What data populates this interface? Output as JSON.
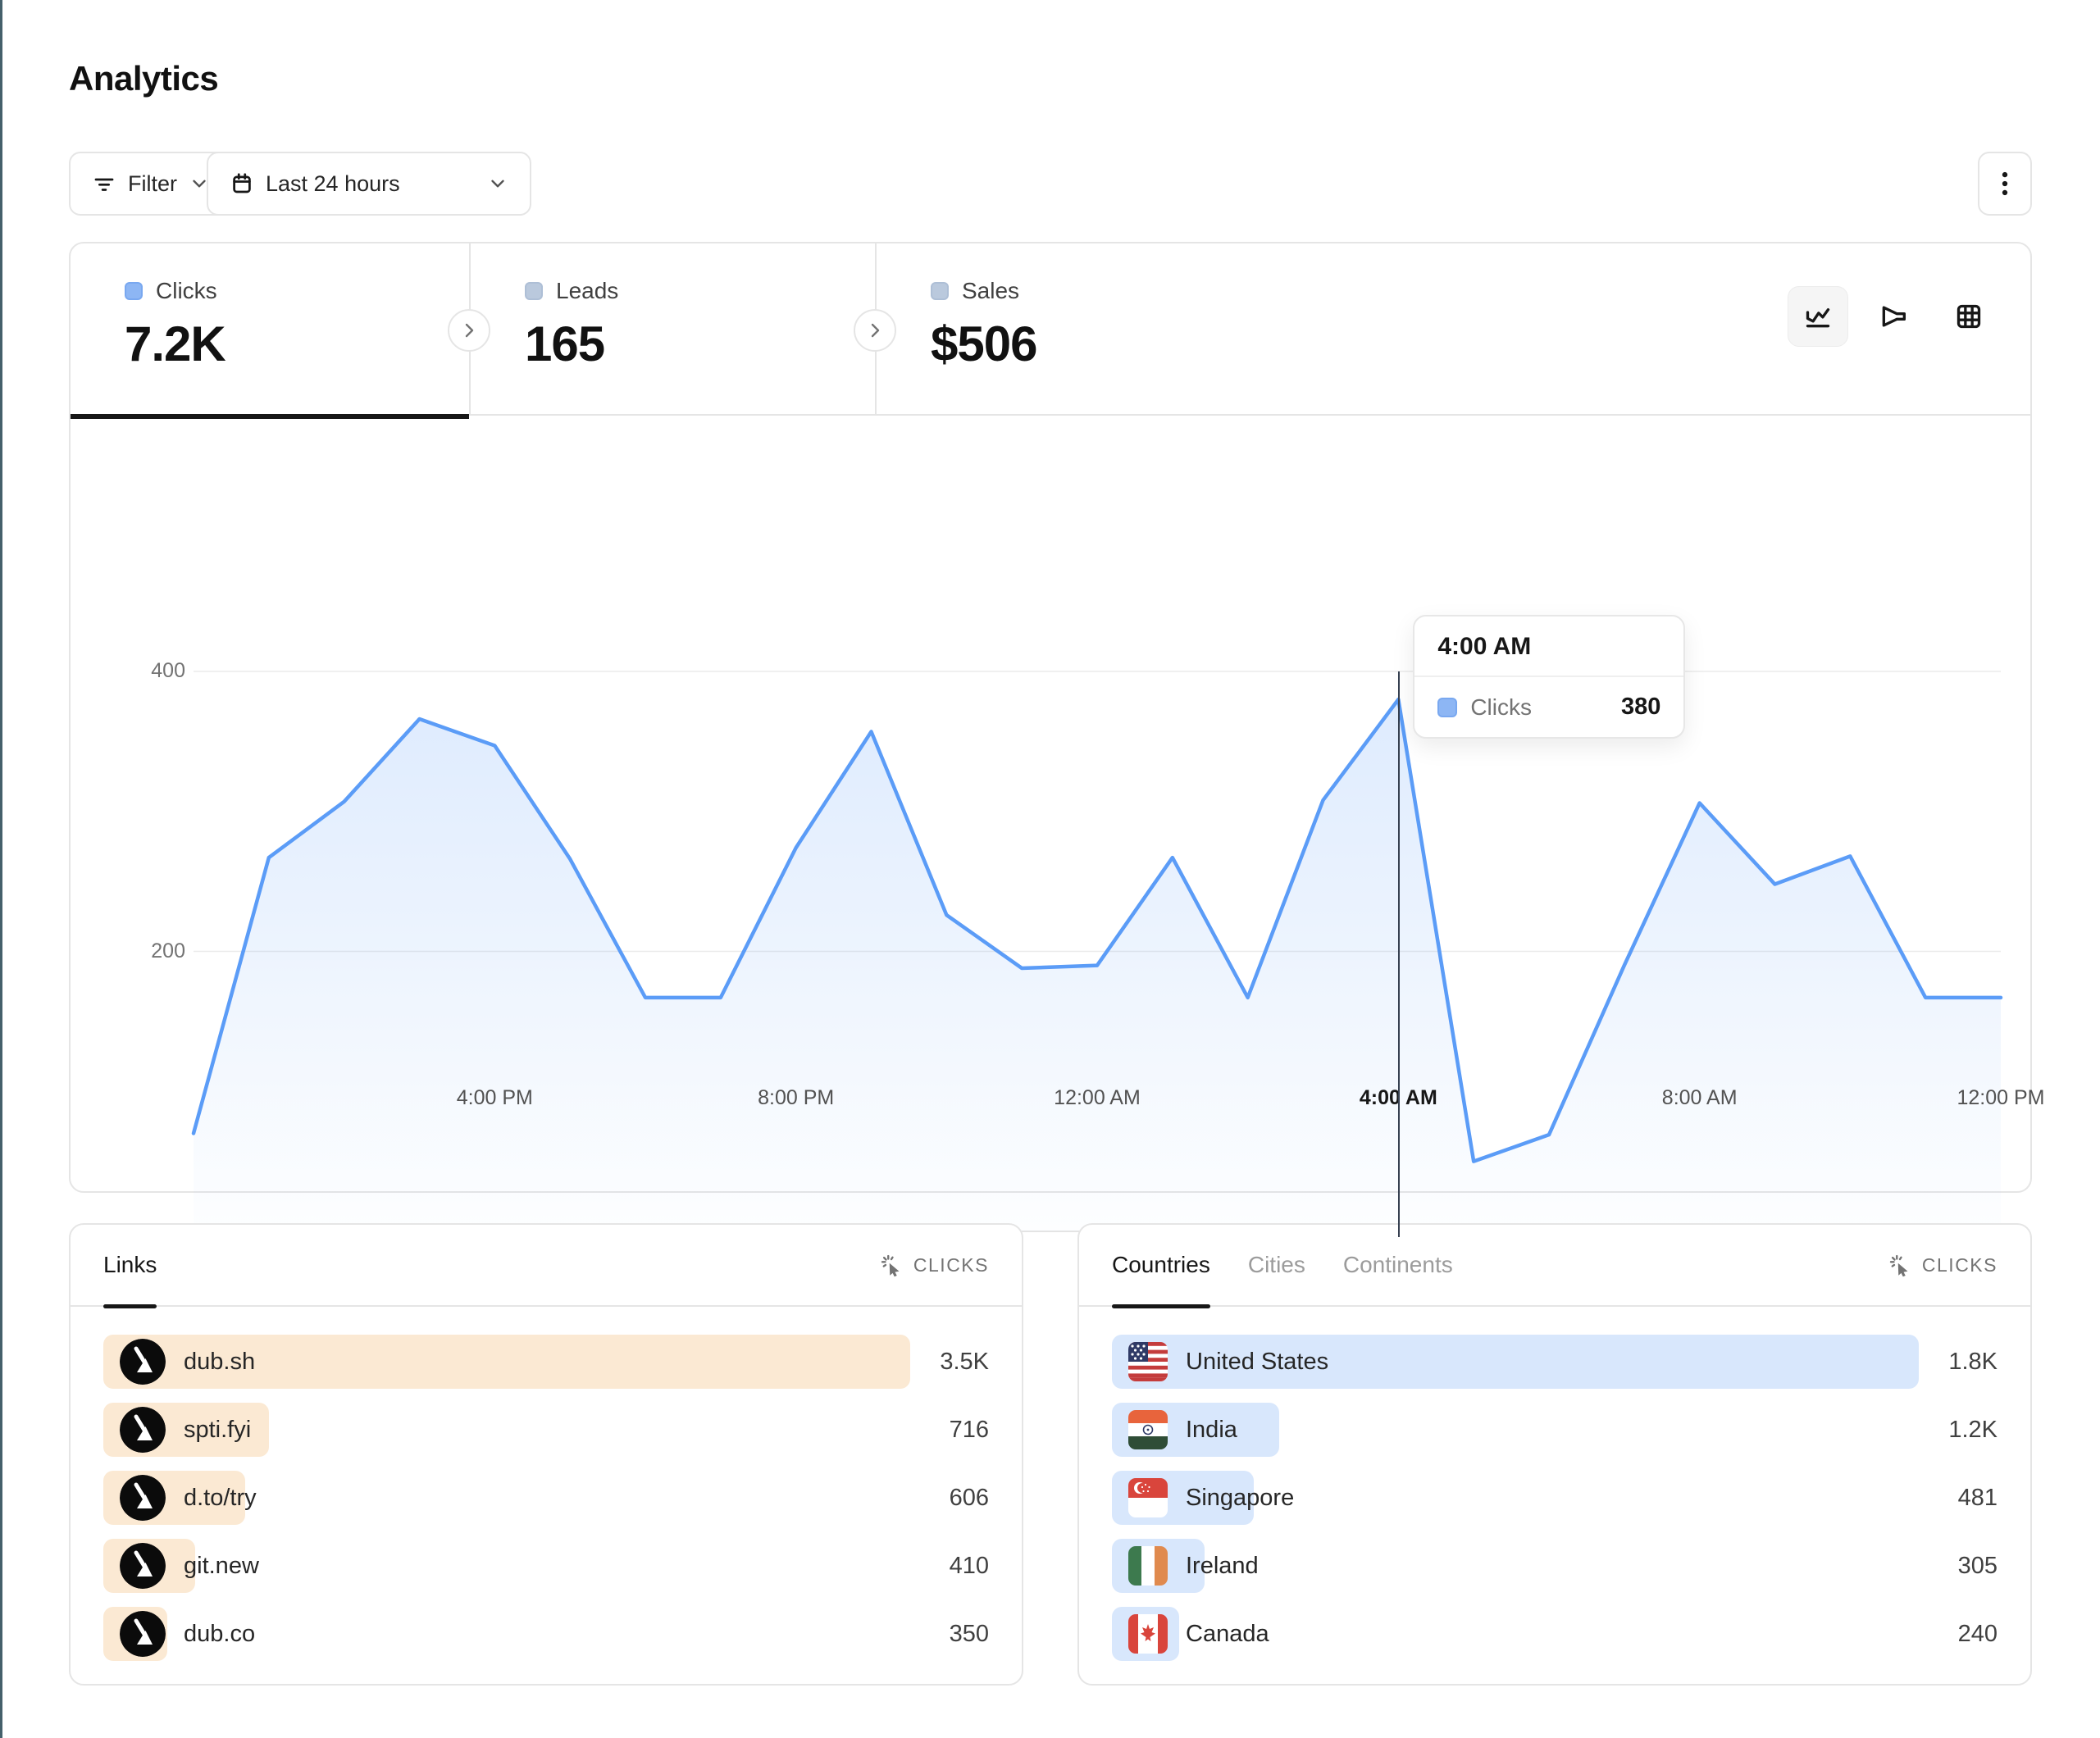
{
  "page": {
    "title": "Analytics"
  },
  "toolbar": {
    "filter_label": "Filter",
    "date_range_label": "Last 24 hours"
  },
  "stats": {
    "tabs": [
      {
        "label": "Clicks",
        "value": "7.2K",
        "active": true
      },
      {
        "label": "Leads",
        "value": "165",
        "active": false
      },
      {
        "label": "Sales",
        "value": "$506",
        "active": false
      }
    ]
  },
  "chart": {
    "y_ticks": [
      "400",
      "200",
      "0"
    ],
    "x_tick_indices": [
      4,
      8,
      12,
      16,
      20,
      24
    ],
    "hovered_tick": "4:00 AM",
    "hovered_index": 16,
    "tooltip": {
      "title": "4:00 AM",
      "series": "Clicks",
      "value": "380"
    }
  },
  "chart_data": {
    "type": "area",
    "series_name": "Clicks",
    "x": [
      "12:00 PM",
      "1:00 PM",
      "2:00 PM",
      "3:00 PM",
      "4:00 PM",
      "5:00 PM",
      "6:00 PM",
      "7:00 PM",
      "8:00 PM",
      "9:00 PM",
      "10:00 PM",
      "11:00 PM",
      "12:00 AM",
      "1:00 AM",
      "2:00 AM",
      "3:00 AM",
      "4:00 AM",
      "5:00 AM",
      "6:00 AM",
      "7:00 AM",
      "8:00 AM",
      "9:00 AM",
      "10:00 AM",
      "11:00 AM",
      "12:00 PM"
    ],
    "values": [
      70,
      267,
      307,
      366,
      347,
      266,
      167,
      167,
      274,
      357,
      226,
      188,
      190,
      267,
      167,
      308,
      380,
      50,
      69,
      190,
      306,
      248,
      268,
      167,
      167
    ],
    "ylim": [
      0,
      400
    ],
    "grid": "horizontal",
    "line_color": "#5b9cf7",
    "area_color_top": "rgba(91,156,247,0.20)",
    "area_color_bottom": "rgba(91,156,247,0.01)"
  },
  "links_panel": {
    "tab": "Links",
    "metric_label": "CLICKS",
    "rows": [
      {
        "label": "dub.sh",
        "value": "3.5K",
        "pct": 100
      },
      {
        "label": "spti.fyi",
        "value": "716",
        "pct": 20.5
      },
      {
        "label": "d.to/try",
        "value": "606",
        "pct": 17.6
      },
      {
        "label": "git.new",
        "value": "410",
        "pct": 11.4
      },
      {
        "label": "dub.co",
        "value": "350",
        "pct": 7.9
      }
    ]
  },
  "geo_panel": {
    "tabs": [
      "Countries",
      "Cities",
      "Continents"
    ],
    "active_tab": "Countries",
    "metric_label": "CLICKS",
    "rows": [
      {
        "label": "United States",
        "value": "1.8K",
        "pct": 100,
        "flag": "us"
      },
      {
        "label": "India",
        "value": "1.2K",
        "pct": 20.7,
        "flag": "in"
      },
      {
        "label": "Singapore",
        "value": "481",
        "pct": 17.6,
        "flag": "sg"
      },
      {
        "label": "Ireland",
        "value": "305",
        "pct": 11.5,
        "flag": "ie"
      },
      {
        "label": "Canada",
        "value": "240",
        "pct": 8.3,
        "flag": "ca"
      }
    ]
  },
  "colors": {
    "border": "#e5e5e5",
    "accent_blue": "#5b9cf7",
    "links_bar": "#fbe9d3",
    "geo_bar": "#d8e7fc",
    "crosshair": "#374151"
  }
}
